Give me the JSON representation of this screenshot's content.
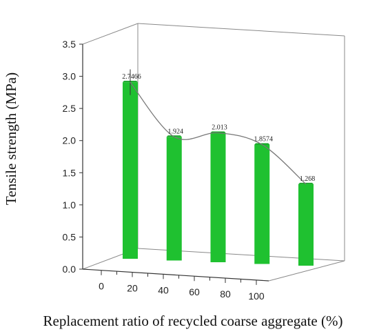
{
  "chart_data": {
    "type": "bar",
    "title": "",
    "xlabel": "Replacement ratio of recycled coarse aggregate (%)",
    "ylabel": "Tensile strength (MPa)",
    "ylim": [
      0,
      3.5
    ],
    "yticks": [
      0.0,
      0.5,
      1.0,
      1.5,
      2.0,
      2.5,
      3.0,
      3.5
    ],
    "ytick_labels": [
      "0.0",
      "0.5",
      "1.0",
      "1.5",
      "2.0",
      "2.5",
      "3.0",
      "3.5"
    ],
    "xlim": [
      0,
      100
    ],
    "xticks": [
      0,
      20,
      40,
      60,
      80,
      100
    ],
    "xtick_labels": [
      "0",
      "20",
      "40",
      "60",
      "80",
      "100"
    ],
    "x": [
      0,
      25,
      50,
      75,
      100
    ],
    "values": [
      2.7466,
      1.924,
      2.013,
      1.8574,
      1.268
    ],
    "data_labels": [
      "2.7466",
      "1.924",
      "2.013",
      "1.8574",
      "1.268"
    ],
    "error_bars": [
      0.2,
      0,
      0,
      0,
      0
    ],
    "trend_line": true,
    "bar_color": "#1fc130",
    "grid": false,
    "projection": "3d"
  }
}
